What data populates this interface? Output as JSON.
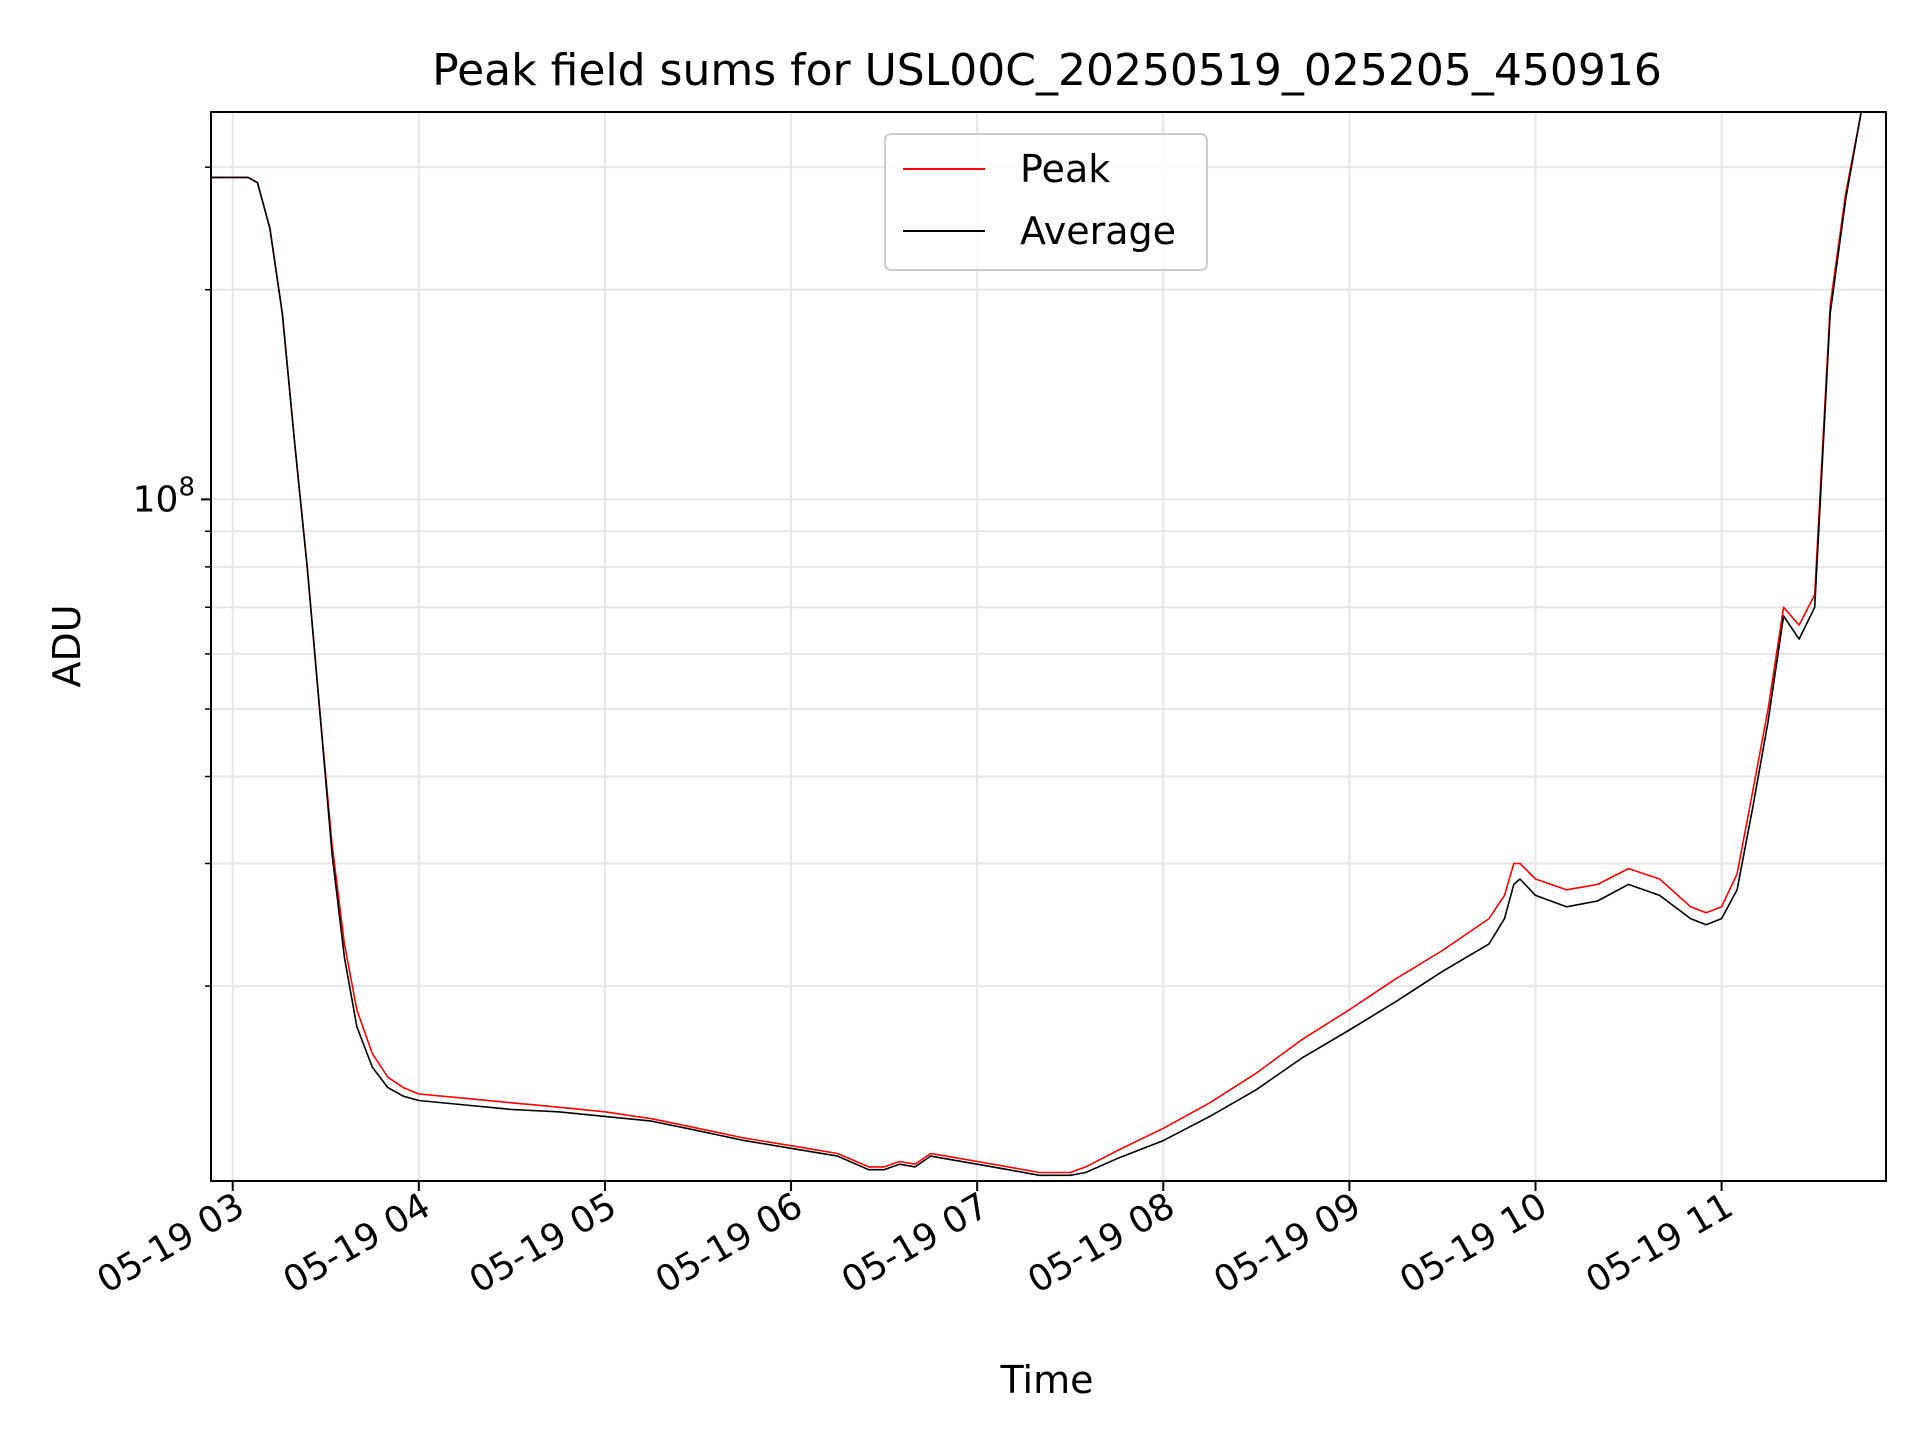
{
  "chart_data": {
    "type": "line",
    "title": "Peak field sums for USL00C_20250519_025205_450916",
    "xlabel": "Time",
    "ylabel": "ADU",
    "yscale": "log",
    "ylim": [
      10500000,
      360000000
    ],
    "xlim": [
      "05-19 02:53",
      "05-19 11:53"
    ],
    "grid": true,
    "legend_position": "upper center",
    "x_tick_labels": [
      "05-19 03",
      "05-19 04",
      "05-19 05",
      "05-19 06",
      "05-19 07",
      "05-19 08",
      "05-19 09",
      "05-19 10",
      "05-19 11"
    ],
    "y_tick_label": {
      "base": "10",
      "exponent": "8"
    },
    "x_dates": [
      "02:53",
      "03:00",
      "03:05",
      "03:08",
      "03:12",
      "03:16",
      "03:20",
      "03:24",
      "03:28",
      "03:32",
      "03:36",
      "03:40",
      "03:45",
      "03:50",
      "03:55",
      "04:00",
      "04:15",
      "04:30",
      "04:45",
      "05:00",
      "05:15",
      "05:30",
      "05:45",
      "06:00",
      "06:15",
      "06:25",
      "06:30",
      "06:35",
      "06:40",
      "06:45",
      "06:50",
      "07:00",
      "07:10",
      "07:20",
      "07:30",
      "07:35",
      "07:45",
      "08:00",
      "08:15",
      "08:30",
      "08:45",
      "09:00",
      "09:15",
      "09:30",
      "09:45",
      "09:50",
      "09:53",
      "09:55",
      "10:00",
      "10:10",
      "10:20",
      "10:30",
      "10:40",
      "10:50",
      "10:55",
      "11:00",
      "11:05",
      "11:10",
      "11:15",
      "11:20",
      "11:25",
      "11:30",
      "11:35",
      "11:40",
      "11:45",
      "11:50",
      "11:53"
    ],
    "series": [
      {
        "name": "Peak",
        "color": "#ff0000",
        "values": [
          290000000,
          290000000,
          290000000,
          285000000,
          245000000,
          185000000,
          120000000,
          80000000,
          50000000,
          32000000,
          23000000,
          18500000,
          16000000,
          14800000,
          14300000,
          14000000,
          13800000,
          13600000,
          13400000,
          13200000,
          12900000,
          12500000,
          12100000,
          11800000,
          11500000,
          11000000,
          11000000,
          11200000,
          11100000,
          11500000,
          11400000,
          11200000,
          11000000,
          10800000,
          10800000,
          11000000,
          11600000,
          12500000,
          13600000,
          15000000,
          16800000,
          18500000,
          20500000,
          22500000,
          25000000,
          27000000,
          30000000,
          30000000,
          28500000,
          27500000,
          28000000,
          29500000,
          28500000,
          26000000,
          25500000,
          26000000,
          29000000,
          38000000,
          50000000,
          70000000,
          66000000,
          73000000,
          190000000,
          275000000,
          360000000,
          360000000,
          360000000
        ]
      },
      {
        "name": "Average",
        "color": "#000000",
        "values": [
          290000000,
          290000000,
          290000000,
          285000000,
          245000000,
          185000000,
          120000000,
          80000000,
          50000000,
          31000000,
          22000000,
          17500000,
          15300000,
          14300000,
          13900000,
          13700000,
          13500000,
          13300000,
          13200000,
          13000000,
          12800000,
          12400000,
          12000000,
          11700000,
          11400000,
          10900000,
          10900000,
          11100000,
          11000000,
          11400000,
          11300000,
          11100000,
          10900000,
          10700000,
          10700000,
          10800000,
          11300000,
          12000000,
          13000000,
          14200000,
          15800000,
          17300000,
          19000000,
          21000000,
          23000000,
          25000000,
          28000000,
          28500000,
          27000000,
          26000000,
          26500000,
          28000000,
          27000000,
          25000000,
          24500000,
          25000000,
          27500000,
          36000000,
          48000000,
          68000000,
          63000000,
          70000000,
          185000000,
          270000000,
          360000000,
          360000000,
          360000000
        ]
      }
    ]
  }
}
